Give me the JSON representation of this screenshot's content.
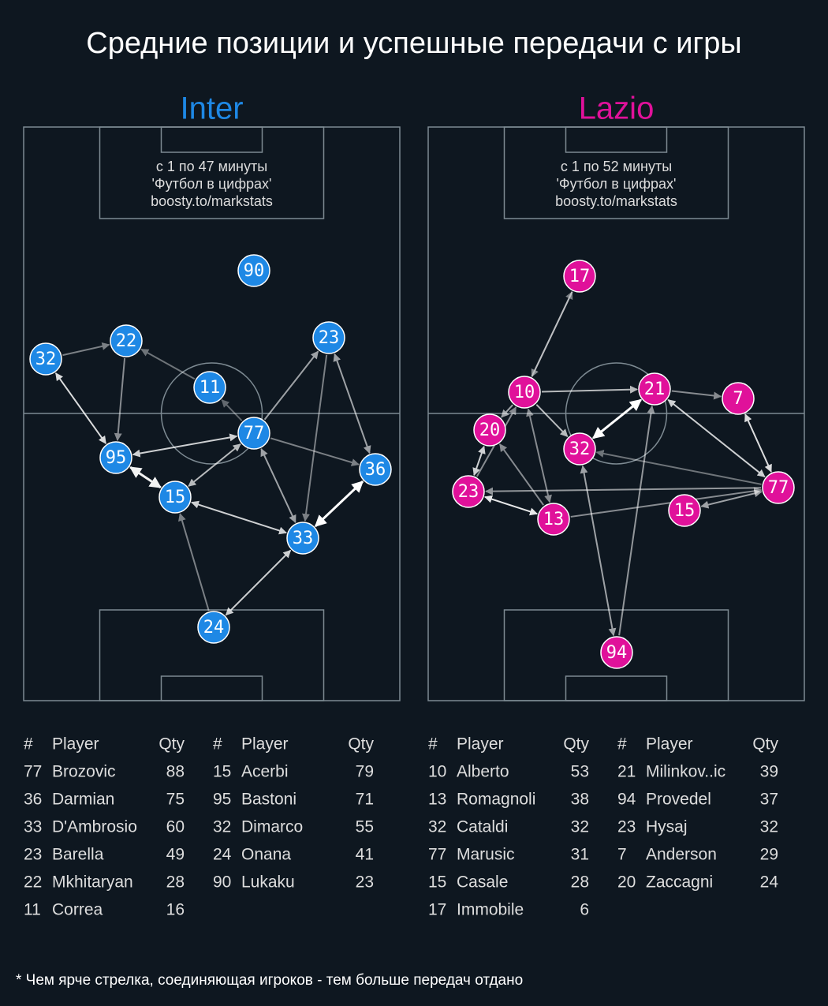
{
  "title": "Средние позиции и успешные передачи с игры",
  "teams": [
    {
      "name": "Inter",
      "note": [
        "с 1 по 47 минуты",
        "'Футбол в цифрах'",
        "boosty.to/markstats"
      ],
      "nodes": [
        "90",
        "32",
        "22",
        "23",
        "11",
        "77",
        "95",
        "36",
        "15",
        "33",
        "24"
      ],
      "tables": [
        {
          "header": [
            "#",
            "Player",
            "Qty"
          ],
          "rows": [
            [
              "77",
              "Brozovic",
              "88"
            ],
            [
              "36",
              "Darmian",
              "75"
            ],
            [
              "33",
              "D'Ambrosio",
              "60"
            ],
            [
              "23",
              "Barella",
              "49"
            ],
            [
              "22",
              "Mkhitaryan",
              "28"
            ],
            [
              "11",
              "Correa",
              "16"
            ]
          ]
        },
        {
          "header": [
            "#",
            "Player",
            "Qty"
          ],
          "rows": [
            [
              "15",
              "Acerbi",
              "79"
            ],
            [
              "95",
              "Bastoni",
              "71"
            ],
            [
              "32",
              "Dimarco",
              "55"
            ],
            [
              "24",
              "Onana",
              "41"
            ],
            [
              "90",
              "Lukaku",
              "23"
            ]
          ]
        }
      ]
    },
    {
      "name": "Lazio",
      "note": [
        "с 1 по 52 минуты",
        "'Футбол в цифрах'",
        "boosty.to/markstats"
      ],
      "nodes": [
        "17",
        "10",
        "21",
        "7",
        "20",
        "32",
        "23",
        "77",
        "15",
        "13",
        "94"
      ],
      "tables": [
        {
          "header": [
            "#",
            "Player",
            "Qty"
          ],
          "rows": [
            [
              "10",
              "Alberto",
              "53"
            ],
            [
              "13",
              "Romagnoli",
              "38"
            ],
            [
              "32",
              "Cataldi",
              "32"
            ],
            [
              "77",
              "Marusic",
              "31"
            ],
            [
              "15",
              "Casale",
              "28"
            ],
            [
              "17",
              "Immobile",
              "6"
            ]
          ]
        },
        {
          "header": [
            "#",
            "Player",
            "Qty"
          ],
          "rows": [
            [
              "21",
              "Milinkov..ic",
              "39"
            ],
            [
              "94",
              "Provedel",
              "37"
            ],
            [
              "23",
              "Hysaj",
              "32"
            ],
            [
              "7",
              "Anderson",
              "29"
            ],
            [
              "20",
              "Zaccagni",
              "24"
            ]
          ]
        }
      ]
    }
  ],
  "footnote": "* Чем ярче стрелка, соединяющая игроков - тем больше передач отдано"
}
